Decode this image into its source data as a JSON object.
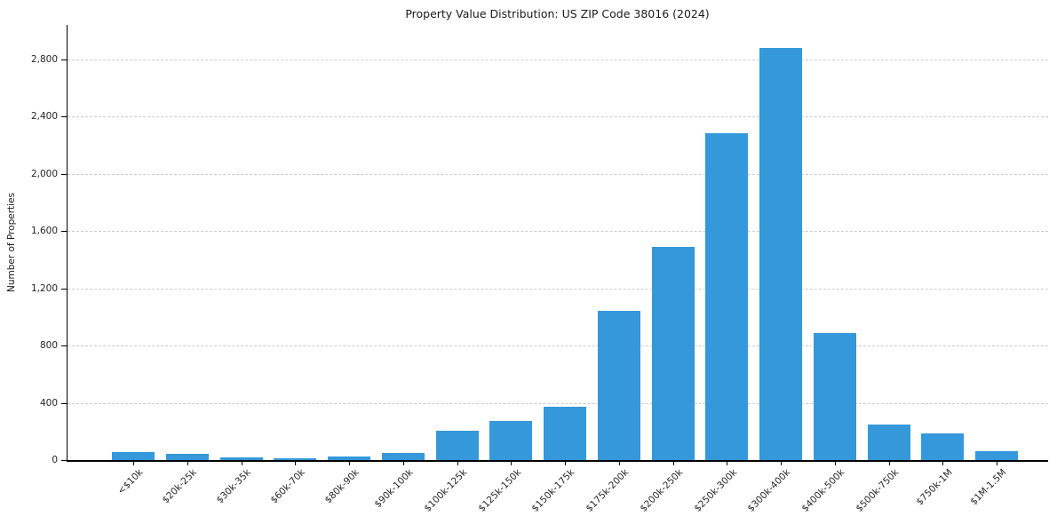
{
  "chart_data": {
    "type": "bar",
    "title": "Property Value Distribution: US ZIP Code 38016 (2024)",
    "xlabel": "",
    "ylabel": "Number of Properties",
    "categories": [
      "<$10k",
      "$20k-25k",
      "$30k-35k",
      "$60k-70k",
      "$80k-90k",
      "$90k-100k",
      "$100k-125k",
      "$125k-150k",
      "$150k-175k",
      "$175k-200k",
      "$200k-250k",
      "$250k-300k",
      "$300k-400k",
      "$400k-500k",
      "$500k-750k",
      "$750k-1M",
      "$1M-1.5M"
    ],
    "values": [
      55,
      45,
      20,
      12,
      25,
      48,
      205,
      270,
      370,
      1040,
      1490,
      2285,
      2880,
      890,
      250,
      185,
      63
    ],
    "yticks": [
      0,
      400,
      800,
      1200,
      1600,
      2000,
      2400,
      2800
    ],
    "ytick_labels": [
      "0",
      "400",
      "800",
      "1,200",
      "1,600",
      "2,000",
      "2,400",
      "2,800"
    ],
    "ylim": [
      0,
      3040
    ],
    "grid": "horizontal-dashed",
    "legend": "none",
    "bar_color": "#3498db"
  }
}
